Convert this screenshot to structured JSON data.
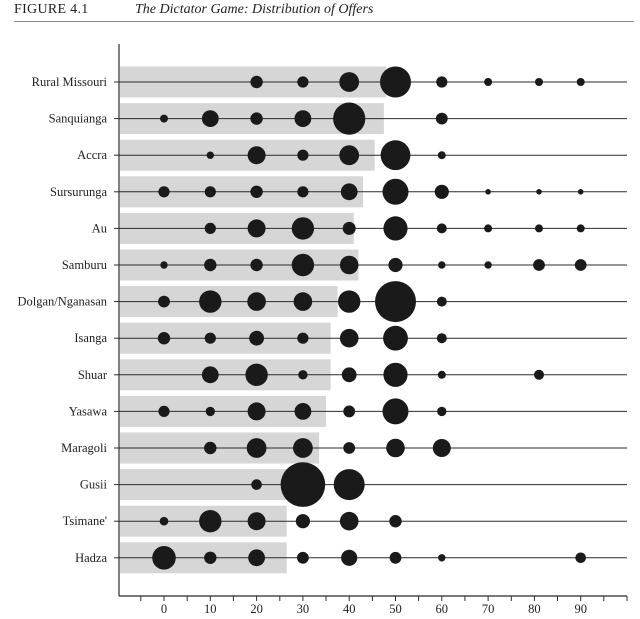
{
  "figure": {
    "label": "FIGURE 4.1",
    "title": "The Dictator Game: Distribution of Offers"
  },
  "chart_data": {
    "type": "bubble-bar",
    "title": "The Dictator Game: Distribution of Offers",
    "xlabel": "",
    "ylabel": "",
    "xlim": [
      -10,
      100
    ],
    "xticks": [
      0,
      10,
      20,
      30,
      40,
      50,
      60,
      70,
      80,
      90
    ],
    "grid": false,
    "legend": "none",
    "bar_color": "#d6d6d6",
    "dot_color": "#1a1a1a",
    "size_unit": "relative bubble radius",
    "series": [
      {
        "name": "Rural Missouri",
        "bar": 48,
        "points": [
          [
            20,
            2
          ],
          [
            30,
            1.8
          ],
          [
            40,
            3.2
          ],
          [
            50,
            5
          ],
          [
            60,
            1.8
          ],
          [
            70,
            1.3
          ],
          [
            81,
            1.3
          ],
          [
            90,
            1.3
          ]
        ]
      },
      {
        "name": "Sanquianga",
        "bar": 47.5,
        "points": [
          [
            0,
            1.3
          ],
          [
            10,
            2.7
          ],
          [
            20,
            2
          ],
          [
            30,
            2.7
          ],
          [
            40,
            5.2
          ],
          [
            60,
            1.9
          ]
        ]
      },
      {
        "name": "Accra",
        "bar": 45.5,
        "points": [
          [
            10,
            1.2
          ],
          [
            20,
            2.9
          ],
          [
            30,
            1.8
          ],
          [
            40,
            3.2
          ],
          [
            50,
            4.8
          ],
          [
            60,
            1.3
          ]
        ]
      },
      {
        "name": "Sursurunga",
        "bar": 43,
        "points": [
          [
            0,
            1.8
          ],
          [
            10,
            1.8
          ],
          [
            20,
            2
          ],
          [
            30,
            1.8
          ],
          [
            40,
            2.7
          ],
          [
            50,
            4.2
          ],
          [
            60,
            2.3
          ],
          [
            70,
            0.9
          ],
          [
            81,
            0.9
          ],
          [
            90,
            0.9
          ]
        ]
      },
      {
        "name": "Au",
        "bar": 41,
        "points": [
          [
            10,
            1.8
          ],
          [
            20,
            2.9
          ],
          [
            30,
            3.6
          ],
          [
            40,
            2.1
          ],
          [
            50,
            3.9
          ],
          [
            60,
            1.6
          ],
          [
            70,
            1.3
          ],
          [
            81,
            1.3
          ],
          [
            90,
            1.3
          ]
        ]
      },
      {
        "name": "Samburu",
        "bar": 42,
        "points": [
          [
            0,
            1.2
          ],
          [
            10,
            2
          ],
          [
            20,
            2
          ],
          [
            30,
            3.6
          ],
          [
            40,
            3
          ],
          [
            50,
            2.3
          ],
          [
            60,
            1.2
          ],
          [
            70,
            1.2
          ],
          [
            81,
            1.9
          ],
          [
            90,
            1.9
          ]
        ]
      },
      {
        "name": "Dolgan/Nganasan",
        "bar": 37.5,
        "points": [
          [
            0,
            1.9
          ],
          [
            10,
            3.6
          ],
          [
            20,
            3
          ],
          [
            30,
            3
          ],
          [
            40,
            3.6
          ],
          [
            50,
            6.6
          ],
          [
            60,
            1.6
          ]
        ]
      },
      {
        "name": "Isanga",
        "bar": 36,
        "points": [
          [
            0,
            2
          ],
          [
            10,
            1.8
          ],
          [
            20,
            2.4
          ],
          [
            30,
            1.8
          ],
          [
            40,
            3
          ],
          [
            50,
            4
          ],
          [
            60,
            1.6
          ]
        ]
      },
      {
        "name": "Shuar",
        "bar": 36,
        "points": [
          [
            10,
            2.7
          ],
          [
            20,
            3.6
          ],
          [
            30,
            1.5
          ],
          [
            40,
            2.4
          ],
          [
            50,
            3.9
          ],
          [
            60,
            1.3
          ],
          [
            81,
            1.6
          ]
        ]
      },
      {
        "name": "Yasawa",
        "bar": 35,
        "points": [
          [
            0,
            1.8
          ],
          [
            10,
            1.5
          ],
          [
            20,
            2.9
          ],
          [
            30,
            2.7
          ],
          [
            40,
            1.9
          ],
          [
            50,
            4.2
          ],
          [
            60,
            1.5
          ]
        ]
      },
      {
        "name": "Maragoli",
        "bar": 33.5,
        "points": [
          [
            10,
            2
          ],
          [
            20,
            3.2
          ],
          [
            30,
            3.2
          ],
          [
            40,
            1.9
          ],
          [
            50,
            3
          ],
          [
            60,
            2.9
          ]
        ]
      },
      {
        "name": "Gusii",
        "bar": 30,
        "points": [
          [
            20,
            1.7
          ],
          [
            30,
            7.2
          ],
          [
            40,
            5
          ]
        ]
      },
      {
        "name": "Tsimane'",
        "bar": 26.5,
        "points": [
          [
            0,
            1.4
          ],
          [
            10,
            3.6
          ],
          [
            20,
            2.9
          ],
          [
            30,
            2.3
          ],
          [
            40,
            3
          ],
          [
            50,
            2
          ]
        ]
      },
      {
        "name": "Hadza",
        "bar": 26.5,
        "points": [
          [
            0,
            3.8
          ],
          [
            10,
            2
          ],
          [
            20,
            2.7
          ],
          [
            30,
            1.9
          ],
          [
            40,
            2.6
          ],
          [
            50,
            1.9
          ],
          [
            60,
            1.2
          ],
          [
            90,
            1.7
          ]
        ]
      }
    ]
  }
}
